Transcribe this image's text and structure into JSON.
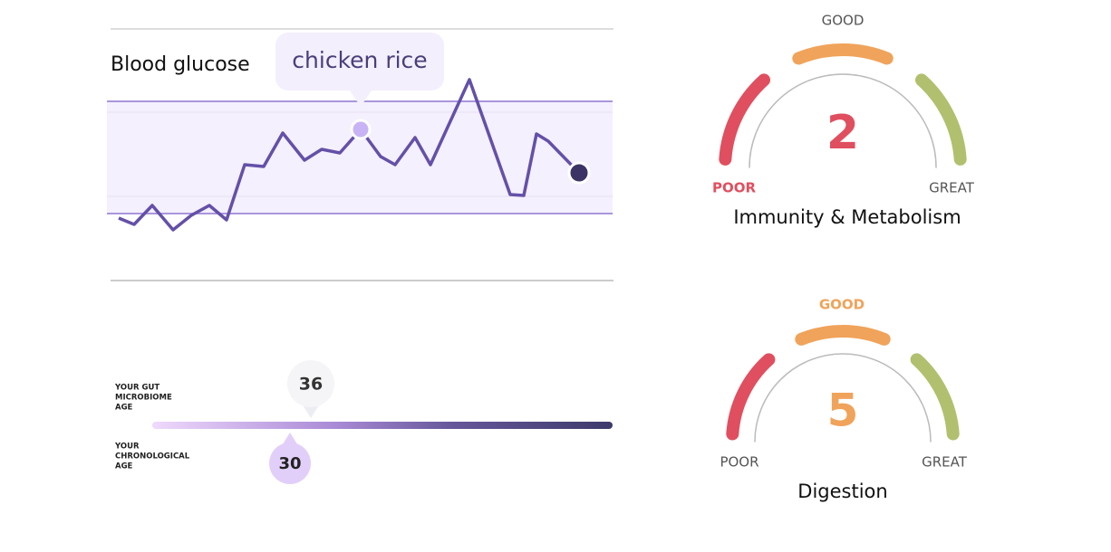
{
  "glucose": {
    "title": "Blood glucose",
    "annotation": "chicken rice"
  },
  "age": {
    "gut_label": [
      "YOUR GUT",
      "MICROBIOME",
      "AGE"
    ],
    "gut_age": 36,
    "chronological_label": [
      "YOUR",
      "CHRONOLOGICAL",
      "AGE"
    ],
    "chronological_age": 30
  },
  "gauges": [
    {
      "good": "GOOD",
      "poor": "POOR",
      "great": "GREAT",
      "score": 2,
      "label": "Immunity & Metabolism"
    },
    {
      "good": "GOOD",
      "poor": "POOR",
      "great": "GREAT",
      "score": 5,
      "label": "Digestion"
    }
  ]
}
